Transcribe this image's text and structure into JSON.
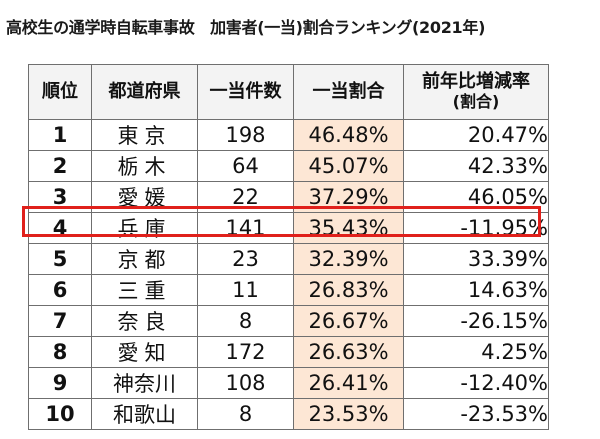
{
  "title": "高校生の通学時自転車事故　加害者(一当)割合ランキング(2021年)",
  "table": {
    "headers": {
      "rank": "順位",
      "prefecture": "都道府県",
      "count": "一当件数",
      "share": "一当割合",
      "yoy_line1": "前年比増減率",
      "yoy_line2": "(割合)"
    },
    "rows": [
      {
        "rank": "1",
        "prefecture": "東京",
        "count": "198",
        "share": "46.48%",
        "yoy": "20.47%"
      },
      {
        "rank": "2",
        "prefecture": "栃木",
        "count": "64",
        "share": "45.07%",
        "yoy": "42.33%"
      },
      {
        "rank": "3",
        "prefecture": "愛媛",
        "count": "22",
        "share": "37.29%",
        "yoy": "46.05%"
      },
      {
        "rank": "4",
        "prefecture": "兵庫",
        "count": "141",
        "share": "35.43%",
        "yoy": "-11.95%"
      },
      {
        "rank": "5",
        "prefecture": "京都",
        "count": "23",
        "share": "32.39%",
        "yoy": "33.39%"
      },
      {
        "rank": "6",
        "prefecture": "三重",
        "count": "11",
        "share": "26.83%",
        "yoy": "14.63%"
      },
      {
        "rank": "7",
        "prefecture": "奈良",
        "count": "8",
        "share": "26.67%",
        "yoy": "-26.15%"
      },
      {
        "rank": "8",
        "prefecture": "愛知",
        "count": "172",
        "share": "26.63%",
        "yoy": "4.25%"
      },
      {
        "rank": "9",
        "prefecture": "神奈川",
        "count": "108",
        "share": "26.41%",
        "yoy": "-12.40%"
      },
      {
        "rank": "10",
        "prefecture": "和歌山",
        "count": "8",
        "share": "23.53%",
        "yoy": "-23.53%"
      }
    ],
    "highlighted_rank": "4"
  },
  "colors": {
    "share_fill": "#fde7d5",
    "highlight_border": "#e0201b",
    "header_fill": "#f3f3f3"
  }
}
